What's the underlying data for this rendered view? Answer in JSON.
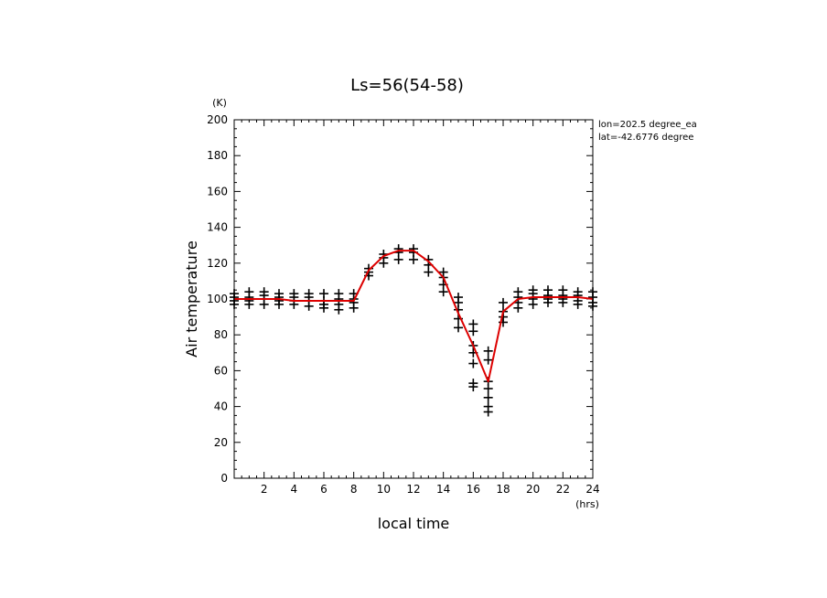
{
  "chart_data": {
    "type": "line",
    "title": "Ls=56(54-58)",
    "xlabel": "local time",
    "ylabel": "Air temperature",
    "x_unit": "(hrs)",
    "y_unit": "(K)",
    "xlim": [
      0,
      24
    ],
    "ylim": [
      0,
      200
    ],
    "x_ticks": [
      "2",
      "4",
      "6",
      "8",
      "10",
      "12",
      "14",
      "16",
      "18",
      "20",
      "22",
      "24"
    ],
    "y_ticks": [
      "0",
      "20",
      "40",
      "60",
      "80",
      "100",
      "120",
      "140",
      "160",
      "180",
      "200"
    ],
    "legend_location": "top-right",
    "annotations": [
      "lon=202.5 degree_ea",
      "lat=-42.6776 degree"
    ],
    "colors": {
      "mean_line": "#dd0000",
      "samples": "#000000"
    },
    "series": [
      {
        "name": "mean",
        "style": "line",
        "x": [
          0,
          1,
          2,
          3,
          4,
          5,
          6,
          7,
          8,
          9,
          10,
          11,
          12,
          13,
          14,
          15,
          16,
          17,
          18,
          19,
          20,
          21,
          22,
          23,
          24
        ],
        "y": [
          100,
          100,
          100,
          100,
          99,
          99,
          99,
          99,
          99,
          116,
          124,
          127,
          127,
          121,
          112,
          92,
          74,
          54,
          93,
          100,
          101,
          101,
          101,
          101,
          100
        ]
      },
      {
        "name": "samples",
        "style": "plus-markers",
        "points": [
          [
            0,
            97
          ],
          [
            0,
            99
          ],
          [
            0,
            101
          ],
          [
            0,
            103
          ],
          [
            1,
            97
          ],
          [
            1,
            99
          ],
          [
            1,
            101
          ],
          [
            1,
            104
          ],
          [
            2,
            97
          ],
          [
            2,
            100
          ],
          [
            2,
            102
          ],
          [
            2,
            104
          ],
          [
            3,
            97
          ],
          [
            3,
            99
          ],
          [
            3,
            101
          ],
          [
            3,
            103
          ],
          [
            4,
            97
          ],
          [
            4,
            99
          ],
          [
            4,
            101
          ],
          [
            4,
            103
          ],
          [
            5,
            96
          ],
          [
            5,
            99
          ],
          [
            5,
            101
          ],
          [
            5,
            103
          ],
          [
            6,
            95
          ],
          [
            6,
            97
          ],
          [
            6,
            99
          ],
          [
            6,
            103
          ],
          [
            7,
            94
          ],
          [
            7,
            97
          ],
          [
            7,
            100
          ],
          [
            7,
            103
          ],
          [
            8,
            95
          ],
          [
            8,
            98
          ],
          [
            8,
            100
          ],
          [
            8,
            103
          ],
          [
            9,
            113
          ],
          [
            9,
            115
          ],
          [
            9,
            117
          ],
          [
            10,
            120
          ],
          [
            10,
            123
          ],
          [
            10,
            125
          ],
          [
            11,
            122
          ],
          [
            11,
            126
          ],
          [
            11,
            128
          ],
          [
            12,
            122
          ],
          [
            12,
            126
          ],
          [
            12,
            128
          ],
          [
            13,
            115
          ],
          [
            13,
            119
          ],
          [
            13,
            122
          ],
          [
            14,
            104
          ],
          [
            14,
            108
          ],
          [
            14,
            112
          ],
          [
            14,
            115
          ],
          [
            15,
            84
          ],
          [
            15,
            89
          ],
          [
            15,
            94
          ],
          [
            15,
            98
          ],
          [
            15,
            101
          ],
          [
            16,
            51
          ],
          [
            16,
            53
          ],
          [
            16,
            64
          ],
          [
            16,
            70
          ],
          [
            16,
            74
          ],
          [
            16,
            82
          ],
          [
            16,
            86
          ],
          [
            17,
            37
          ],
          [
            17,
            40
          ],
          [
            17,
            45
          ],
          [
            17,
            50
          ],
          [
            17,
            54
          ],
          [
            17,
            66
          ],
          [
            17,
            71
          ],
          [
            18,
            87
          ],
          [
            18,
            90
          ],
          [
            18,
            93
          ],
          [
            18,
            98
          ],
          [
            19,
            95
          ],
          [
            19,
            98
          ],
          [
            19,
            101
          ],
          [
            19,
            104
          ],
          [
            20,
            97
          ],
          [
            20,
            100
          ],
          [
            20,
            103
          ],
          [
            20,
            105
          ],
          [
            21,
            98
          ],
          [
            21,
            100
          ],
          [
            21,
            102
          ],
          [
            21,
            105
          ],
          [
            22,
            98
          ],
          [
            22,
            100
          ],
          [
            22,
            102
          ],
          [
            22,
            105
          ],
          [
            23,
            97
          ],
          [
            23,
            99
          ],
          [
            23,
            102
          ],
          [
            23,
            104
          ],
          [
            24,
            96
          ],
          [
            24,
            98
          ],
          [
            24,
            101
          ],
          [
            24,
            104
          ]
        ]
      }
    ]
  }
}
